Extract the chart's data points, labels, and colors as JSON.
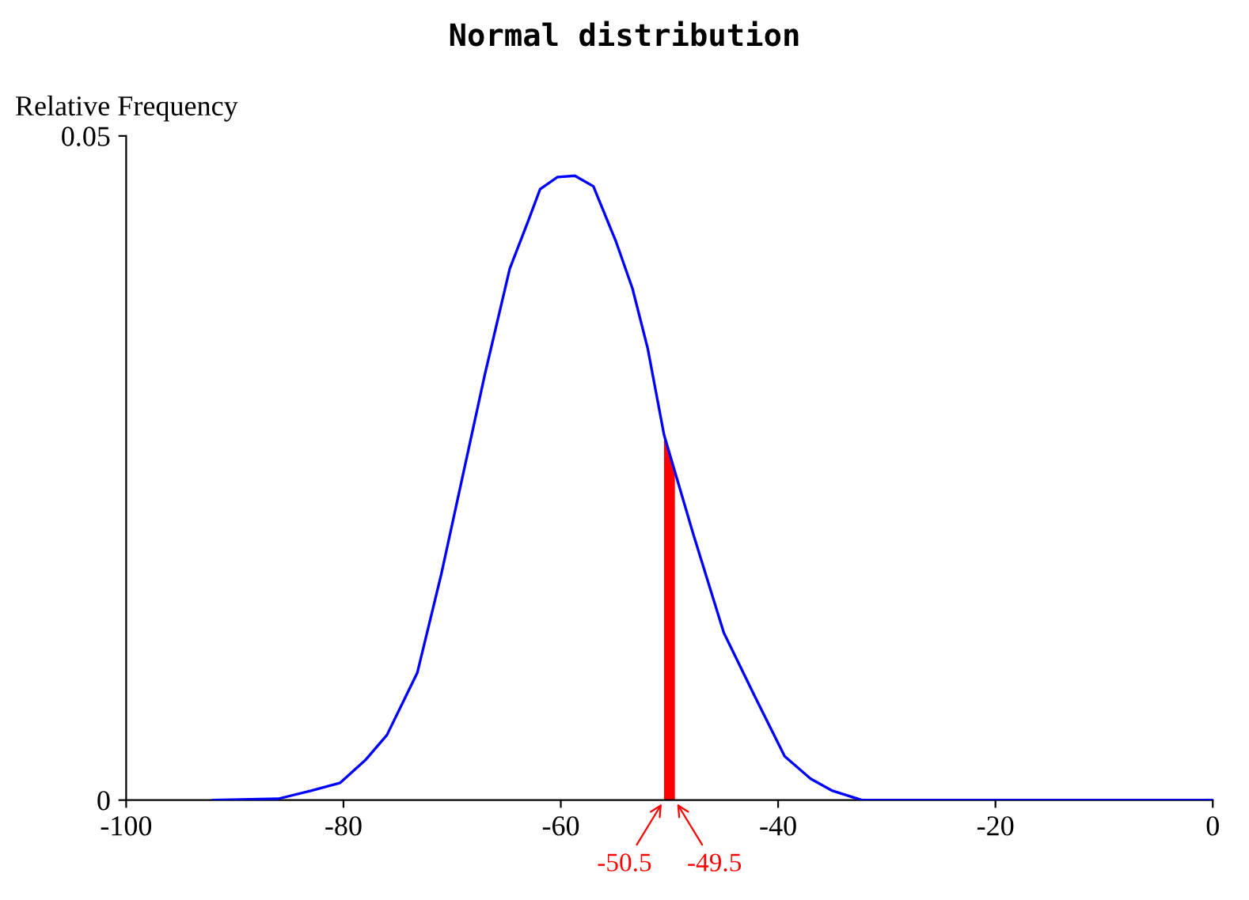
{
  "chart_data": {
    "type": "line",
    "title": "Normal distribution",
    "ylabel": "Relative Frequency",
    "series": [
      {
        "color": "#0000ff",
        "x": [
          -92,
          -86,
          -83,
          -80.3,
          -78,
          -76,
          -73.2,
          -71,
          -69,
          -67,
          -64.7,
          -63,
          -61.9,
          -60.3,
          -58.7,
          -57,
          -54.9,
          -53.4,
          -52,
          -50.5,
          -47.8,
          -45,
          -42.2,
          -39.4,
          -37,
          -35,
          -32.3,
          0
        ],
        "values": [
          0,
          0.0001,
          0.0007,
          0.0013,
          0.003,
          0.0049,
          0.0096,
          0.017,
          0.0245,
          0.032,
          0.04,
          0.0436,
          0.046,
          0.0469,
          0.047,
          0.0462,
          0.042,
          0.0385,
          0.034,
          0.0275,
          0.02,
          0.0126,
          0.0079,
          0.0033,
          0.0016,
          0.0007,
          0,
          0
        ]
      },
      {
        "type": "area",
        "color": "#ff0000",
        "x": [
          -50.5,
          -49.5
        ],
        "values": [
          0.0275,
          0.0245
        ]
      }
    ],
    "annotations": [
      {
        "text": "-50.5",
        "x": -50.5,
        "y": 0
      },
      {
        "text": "-49.5",
        "x": -49.5,
        "y": 0
      }
    ],
    "xlim": [
      -100,
      0
    ],
    "ylim": [
      0,
      0.05
    ],
    "xticks": [
      -100,
      -80,
      -60,
      -40,
      -20,
      0
    ],
    "yticks": [
      0,
      0.05
    ],
    "grid": false,
    "legend": false
  }
}
